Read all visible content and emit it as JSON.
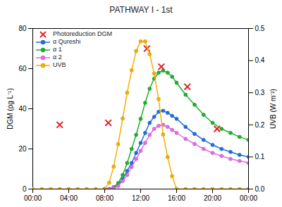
{
  "chart_data": {
    "type": "line",
    "title": "PATHWAY I - 1st",
    "ylabel": "DGM (pg L⁻¹)",
    "y2label": "UVB (W m⁻²)",
    "x": [
      0,
      1,
      2,
      3,
      4,
      5,
      6,
      7,
      8,
      8.5,
      9,
      9.5,
      10,
      10.5,
      11,
      11.5,
      12,
      12.5,
      13,
      13.5,
      14,
      14.5,
      15,
      15.5,
      16,
      17,
      18,
      19,
      20,
      21,
      22,
      23,
      24
    ],
    "xlim": [
      0,
      24
    ],
    "xticks": [
      {
        "value": 0,
        "label": "00:00"
      },
      {
        "value": 4,
        "label": "04:00"
      },
      {
        "value": 8,
        "label": "08:00"
      },
      {
        "value": 12,
        "label": "12:00"
      },
      {
        "value": 16,
        "label": "16:00"
      },
      {
        "value": 20,
        "label": "20:00"
      },
      {
        "value": 24,
        "label": "00:00"
      }
    ],
    "ylim": [
      0,
      80
    ],
    "yticks": [
      0,
      20,
      40,
      60,
      80
    ],
    "y2lim": [
      0,
      0.5
    ],
    "y2ticks": [
      {
        "value": 0,
        "label": "0.0"
      },
      0.1,
      0.2,
      0.3,
      0.4,
      0.5
    ],
    "legend": "upper left",
    "series": [
      {
        "name": "Photoreduction DGM",
        "type": "scatter",
        "marker": "x",
        "color": "#e8202a",
        "x": [
          3,
          8.4,
          12.7,
          14.3,
          17.2,
          20.5
        ],
        "values": [
          32,
          33,
          70,
          61,
          51,
          30
        ]
      },
      {
        "name": "α Qureshi",
        "type": "line",
        "marker": "circle",
        "color": "#1f6fe0",
        "values": [
          null,
          null,
          null,
          null,
          null,
          null,
          null,
          null,
          0,
          0,
          0.5,
          2,
          5,
          9,
          13,
          18,
          23,
          28,
          33,
          36,
          38.5,
          39,
          38,
          36.5,
          35,
          31,
          27.5,
          24.5,
          22,
          20,
          18.5,
          17,
          16
        ]
      },
      {
        "name": "α 1",
        "type": "line",
        "marker": "circle",
        "color": "#1db22a",
        "values": [
          null,
          null,
          null,
          null,
          null,
          null,
          null,
          null,
          0,
          0,
          1,
          3,
          7,
          13,
          20,
          27,
          35,
          43,
          50,
          55,
          58,
          59,
          58,
          56,
          53,
          47,
          42,
          37,
          33,
          30,
          28,
          26,
          24.5
        ]
      },
      {
        "name": "α 2",
        "type": "line",
        "marker": "circle",
        "color": "#e36ce8",
        "values": [
          null,
          null,
          null,
          null,
          null,
          null,
          null,
          null,
          0,
          0,
          0.5,
          1.5,
          4,
          7,
          11,
          15,
          19,
          23,
          27,
          30,
          31.5,
          32,
          31,
          29.5,
          28,
          25,
          22.5,
          20,
          18,
          16.5,
          15,
          14,
          13
        ]
      },
      {
        "name": "UVB",
        "type": "line",
        "marker": "circle",
        "color": "#f5b100",
        "axis": "y2",
        "values": [
          0,
          0,
          0,
          0,
          0,
          0,
          0,
          0,
          0,
          0.02,
          0.07,
          0.14,
          0.22,
          0.3,
          0.37,
          0.43,
          0.46,
          0.46,
          0.42,
          0.36,
          0.28,
          0.17,
          0.1,
          0.04,
          0,
          0,
          0,
          0,
          0,
          0,
          0,
          0,
          0
        ]
      }
    ]
  }
}
